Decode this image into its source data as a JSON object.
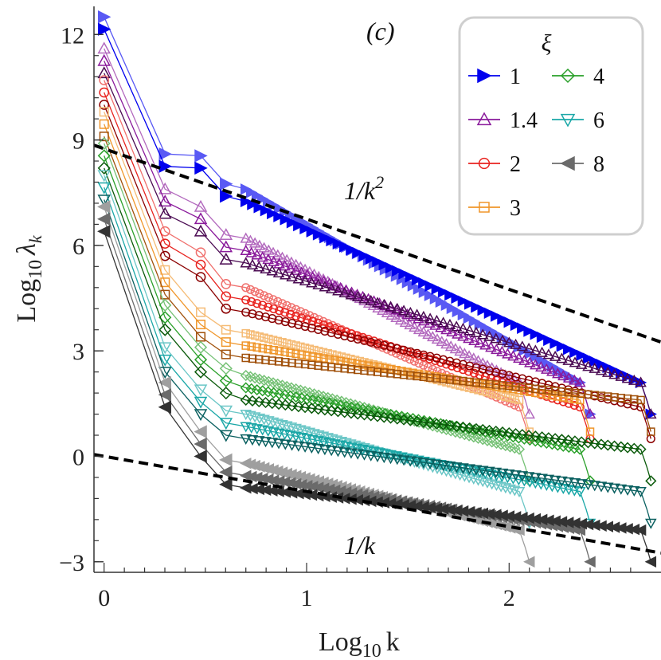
{
  "chart_data": {
    "type": "line",
    "panel_label": "(c)",
    "xlabel": "Log",
    "xlabel_sub": "10",
    "xlabel_tail": "k",
    "ylabel": "Log",
    "ylabel_sub": "10",
    "ylabel_var": "λ",
    "ylabel_var_sub": "k",
    "xlim": [
      -0.05,
      2.75
    ],
    "ylim": [
      -3.3,
      12.8
    ],
    "xticks": [
      {
        "value": 0,
        "label": "0"
      },
      {
        "value": 1,
        "label": "1"
      },
      {
        "value": 2,
        "label": "2"
      }
    ],
    "yticks": [
      {
        "value": -3,
        "label": "−3"
      },
      {
        "value": 0,
        "label": "0"
      },
      {
        "value": 3,
        "label": "3"
      },
      {
        "value": 6,
        "label": "6"
      },
      {
        "value": 9,
        "label": "9"
      },
      {
        "value": 12,
        "label": "12"
      }
    ],
    "legend": {
      "title": "ξ",
      "placement": "top-right",
      "entries": [
        {
          "label": "1",
          "color": "#0000ee",
          "marker": "triangle-right"
        },
        {
          "label": "1.4",
          "color": "#8a1a9b",
          "marker": "triangle-up"
        },
        {
          "label": "2",
          "color": "#e8231f",
          "marker": "circle"
        },
        {
          "label": "3",
          "color": "#f0962a",
          "marker": "square"
        },
        {
          "label": "4",
          "color": "#2aa02a",
          "marker": "diamond"
        },
        {
          "label": "6",
          "color": "#1aa7a7",
          "marker": "triangle-down"
        },
        {
          "label": "8",
          "color": "#6b6b6b",
          "marker": "triangle-left"
        }
      ]
    },
    "reference_lines": [
      {
        "label": "1/k²",
        "label_main": "1/k",
        "label_sup": "2",
        "style": "dashed",
        "color": "#000000",
        "x": [
          -0.05,
          2.75
        ],
        "y": [
          8.85,
          3.25
        ]
      },
      {
        "label": "1/k",
        "label_main": "1/k",
        "label_sup": "",
        "style": "dashed",
        "color": "#000000",
        "x": [
          -0.05,
          2.75
        ],
        "y": [
          0.05,
          -2.75
        ]
      }
    ],
    "series": [
      {
        "name": "1",
        "color": "#0000ee",
        "dark": "#00008b",
        "marker": "triangle-right",
        "top": [
          12.5,
          8.6,
          8.55,
          7.75
        ],
        "tail": [
          7.6,
          1.2
        ],
        "sizes": [
          2.4,
          2.7
        ]
      },
      {
        "name": "1.4",
        "color": "#8a1a9b",
        "dark": "#4a0a52",
        "marker": "triangle-up",
        "top": [
          11.6,
          7.6,
          7.1,
          6.3
        ],
        "tail": [
          6.2,
          1.2
        ],
        "sizes": [
          2.1,
          2.4,
          2.7
        ]
      },
      {
        "name": "2",
        "color": "#e8231f",
        "dark": "#8b0000",
        "marker": "circle",
        "top": [
          10.7,
          6.4,
          5.8,
          4.9
        ],
        "tail": [
          4.8,
          0.5
        ],
        "sizes": [
          2.1,
          2.4,
          2.7
        ]
      },
      {
        "name": "3",
        "color": "#f0962a",
        "dark": "#a0500a",
        "marker": "square",
        "top": [
          9.8,
          5.3,
          4.1,
          3.6
        ],
        "tail": [
          3.5,
          0.7
        ],
        "sizes": [
          2.1,
          2.4,
          2.7
        ]
      },
      {
        "name": "4",
        "color": "#2aa02a",
        "dark": "#0a5a0a",
        "marker": "diamond",
        "top": [
          8.9,
          4.3,
          3.1,
          2.5
        ],
        "tail": [
          2.3,
          -0.7
        ],
        "sizes": [
          2.1,
          2.4,
          2.7
        ]
      },
      {
        "name": "6",
        "color": "#1aa7a7",
        "dark": "#0a6060",
        "marker": "triangle-down",
        "top": [
          8.0,
          3.1,
          1.9,
          1.3
        ],
        "tail": [
          1.2,
          -1.9
        ],
        "sizes": [
          2.1,
          2.4,
          2.7
        ]
      },
      {
        "name": "8",
        "color": "#6b6b6b",
        "dark": "#333333",
        "marker": "triangle-left",
        "top": [
          7.1,
          2.1,
          0.7,
          -0.1
        ],
        "tail": [
          -0.2,
          -3.0
        ],
        "sizes": [
          2.1,
          2.4,
          2.7
        ]
      }
    ]
  }
}
